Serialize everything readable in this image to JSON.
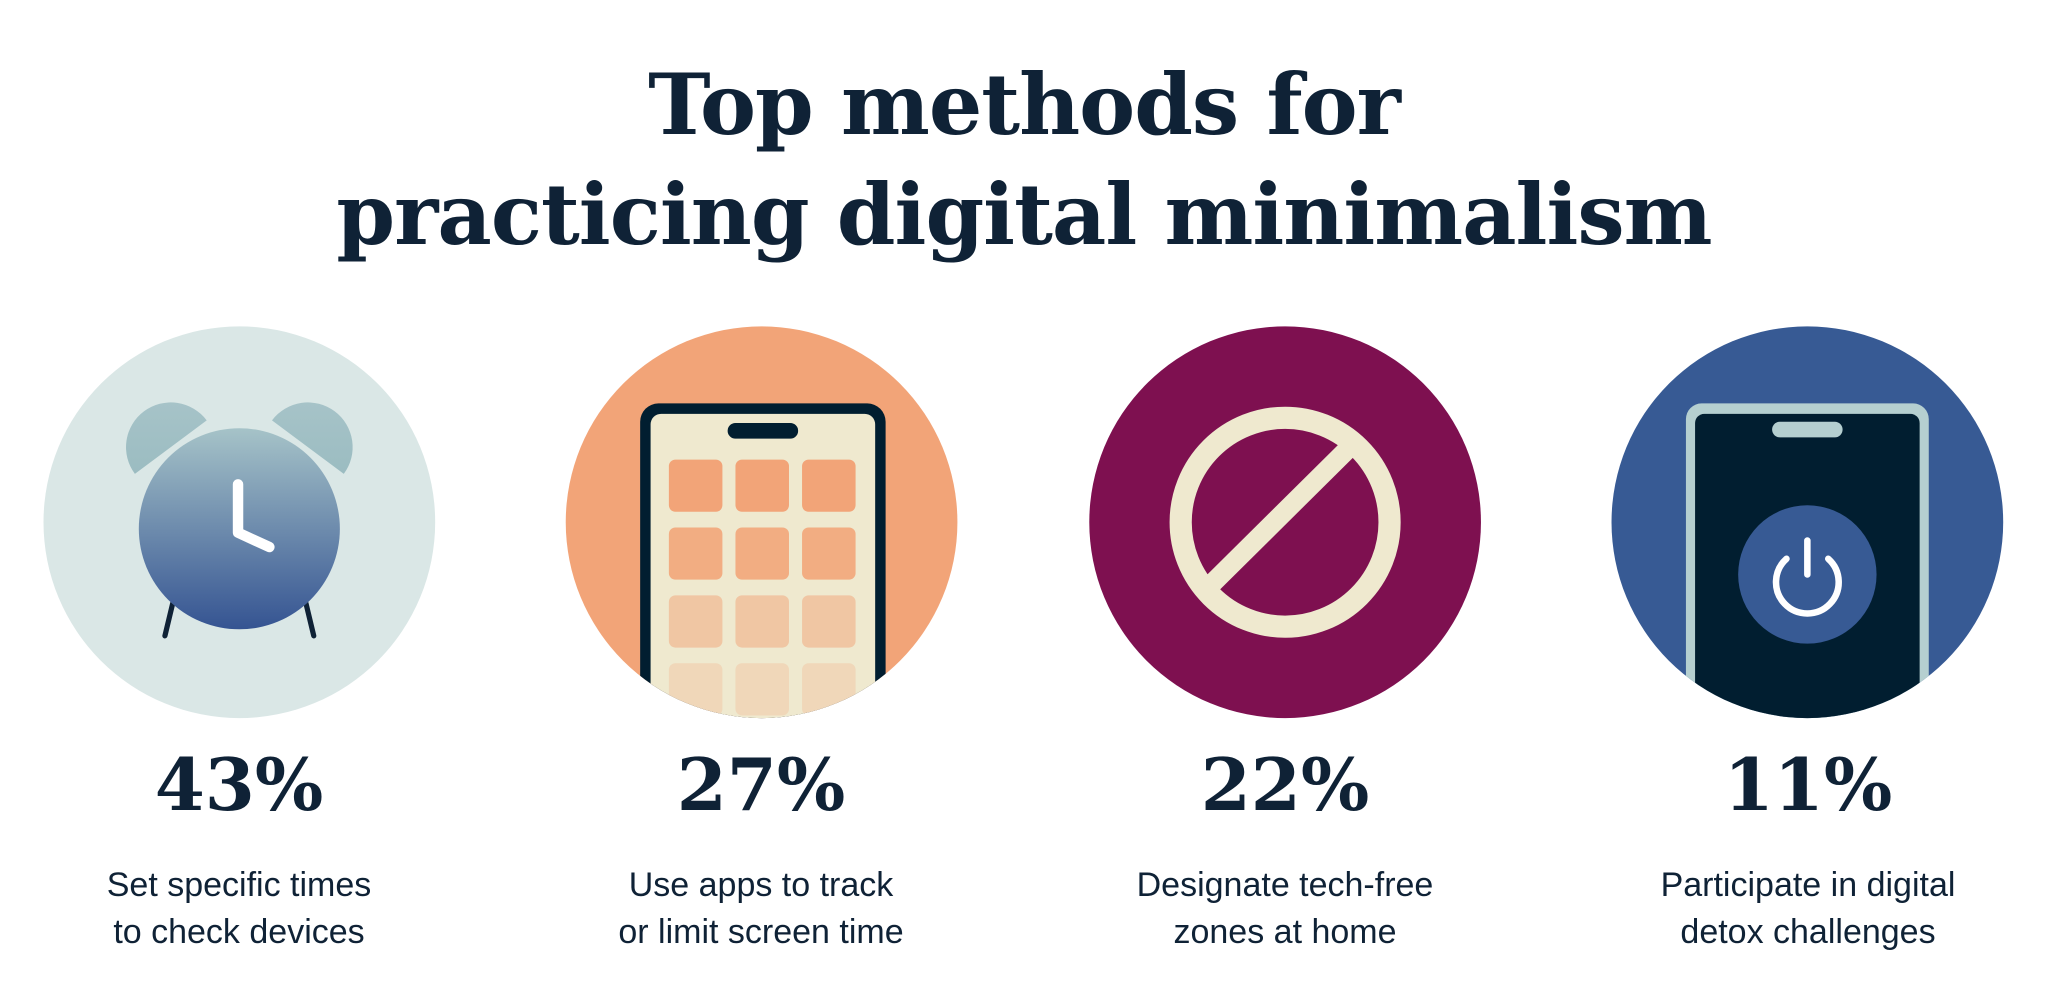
{
  "title": {
    "line1": "Top methods for",
    "line2": "practicing digital minimalism"
  },
  "items": [
    {
      "percent": "43%",
      "label_line1": "Set specific times",
      "label_line2": "to check devices",
      "icon": "alarm-clock-icon",
      "color": "#DAE7E6"
    },
    {
      "percent": "27%",
      "label_line1": "Use apps to track",
      "label_line2": "or limit screen time",
      "icon": "smartphone-apps-icon",
      "color": "#F2A478"
    },
    {
      "percent": "22%",
      "label_line1": "Designate tech-free",
      "label_line2": "zones at home",
      "icon": "prohibited-icon",
      "color": "#7E1050"
    },
    {
      "percent": "11%",
      "label_line1": "Participate in digital",
      "label_line2": "detox challenges",
      "icon": "phone-power-icon",
      "color": "#375A94"
    }
  ]
}
